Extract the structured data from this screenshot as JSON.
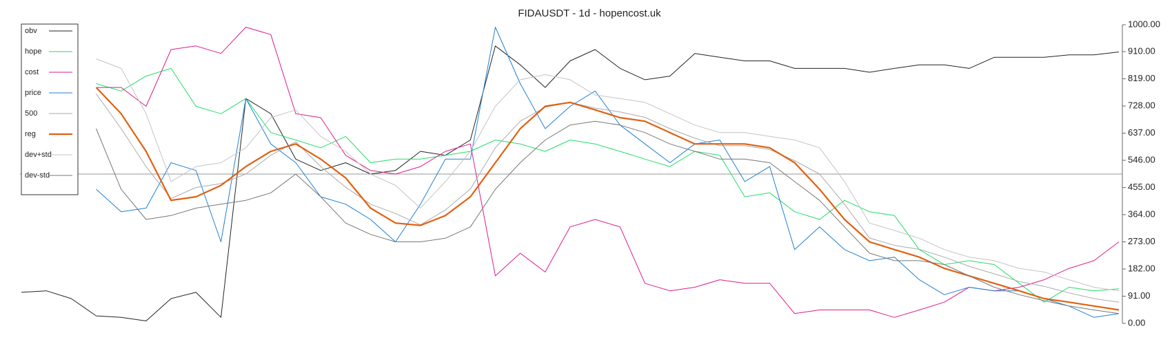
{
  "chart_data": {
    "type": "line",
    "title": "FIDAUSDT - 1d - hopencost.uk",
    "ylim": [
      0,
      1000
    ],
    "yticks": [
      {
        "value": 0,
        "label": "0.00"
      },
      {
        "value": 91,
        "label": "91.00"
      },
      {
        "value": 182,
        "label": "182.00"
      },
      {
        "value": 273,
        "label": "273.00"
      },
      {
        "value": 364,
        "label": "364.00"
      },
      {
        "value": 455,
        "label": "455.00"
      },
      {
        "value": 546,
        "label": "546.00"
      },
      {
        "value": 637,
        "label": "637.00"
      },
      {
        "value": 728,
        "label": "728.00"
      },
      {
        "value": 819,
        "label": "819.00"
      },
      {
        "value": 910,
        "label": "910.00"
      },
      {
        "value": 1000,
        "label": "1000.00"
      }
    ],
    "reference_line": 500,
    "legend": "upper-left",
    "series": [
      {
        "name": "obv",
        "color": "#222222",
        "width": 1,
        "values": [
          104,
          109,
          83,
          25,
          20,
          8,
          83,
          104,
          20,
          753,
          702,
          550,
          512,
          538,
          500,
          512,
          576,
          563,
          614,
          929,
          866,
          790,
          879,
          917,
          854,
          816,
          828,
          904,
          891,
          879,
          879,
          854,
          854,
          854,
          841,
          854,
          866,
          866,
          854,
          891,
          891,
          891,
          899,
          899,
          909
        ]
      },
      {
        "name": "hope",
        "color": "#22dd66",
        "width": 1,
        "values": [
          null,
          null,
          null,
          803,
          778,
          828,
          854,
          727,
          702,
          753,
          639,
          614,
          588,
          626,
          538,
          550,
          550,
          563,
          576,
          614,
          601,
          576,
          614,
          601,
          576,
          550,
          525,
          576,
          563,
          424,
          437,
          374,
          348,
          412,
          374,
          361,
          247,
          197,
          210,
          197,
          134,
          71,
          121,
          109,
          116
        ]
      },
      {
        "name": "cost",
        "color": "#dd1a8c",
        "width": 1,
        "values": [
          null,
          null,
          null,
          790,
          790,
          727,
          917,
          929,
          904,
          992,
          967,
          702,
          689,
          563,
          512,
          500,
          525,
          576,
          601,
          159,
          235,
          172,
          323,
          348,
          323,
          134,
          109,
          121,
          146,
          134,
          134,
          33,
          45,
          45,
          45,
          20,
          45,
          71,
          121,
          109,
          121,
          146,
          184,
          210,
          273
        ]
      },
      {
        "name": "price",
        "color": "#1f7fd0",
        "width": 1,
        "values": [
          null,
          null,
          null,
          449,
          374,
          386,
          538,
          512,
          273,
          753,
          601,
          538,
          424,
          399,
          348,
          273,
          399,
          550,
          550,
          992,
          803,
          652,
          727,
          778,
          664,
          601,
          538,
          601,
          614,
          475,
          525,
          247,
          323,
          247,
          210,
          222,
          146,
          96,
          121,
          109,
          109,
          83,
          58,
          20,
          33
        ]
      },
      {
        "name": "500",
        "color": "#aaaaaa",
        "width": 1,
        "values": [
          null,
          null,
          null,
          769,
          652,
          525,
          418,
          455,
          468,
          500,
          563,
          608,
          525,
          456,
          399,
          368,
          330,
          380,
          450,
          588,
          677,
          724,
          740,
          721,
          708,
          690,
          652,
          620,
          595,
          595,
          582,
          545,
          500,
          399,
          286,
          261,
          248,
          222,
          191,
          166,
          140,
          124,
          102,
          83,
          71
        ]
      },
      {
        "name": "reg",
        "color": "#e06010",
        "width": 2.2,
        "values": [
          null,
          null,
          null,
          790,
          702,
          576,
          412,
          424,
          462,
          525,
          576,
          601,
          550,
          487,
          386,
          336,
          328,
          361,
          424,
          538,
          652,
          727,
          740,
          715,
          689,
          677,
          639,
          601,
          601,
          601,
          588,
          538,
          449,
          348,
          273,
          247,
          222,
          184,
          159,
          134,
          109,
          83,
          71,
          58,
          45
        ]
      },
      {
        "name": "dev+std",
        "color": "#c4c4c4",
        "width": 1,
        "values": [
          null,
          null,
          null,
          886,
          854,
          702,
          475,
          525,
          538,
          588,
          689,
          715,
          626,
          576,
          500,
          462,
          386,
          475,
          576,
          727,
          816,
          833,
          816,
          765,
          753,
          740,
          702,
          664,
          639,
          639,
          626,
          614,
          588,
          475,
          336,
          311,
          285,
          247,
          222,
          210,
          184,
          172,
          146,
          121,
          109
        ]
      },
      {
        "name": "dev-std",
        "color": "#777777",
        "width": 1,
        "values": [
          null,
          null,
          null,
          652,
          449,
          348,
          361,
          386,
          399,
          412,
          437,
          500,
          424,
          336,
          298,
          273,
          273,
          285,
          323,
          449,
          538,
          614,
          664,
          677,
          664,
          639,
          601,
          576,
          550,
          550,
          538,
          475,
          412,
          323,
          235,
          210,
          210,
          197,
          159,
          121,
          96,
          76,
          58,
          45,
          33
        ]
      }
    ]
  }
}
